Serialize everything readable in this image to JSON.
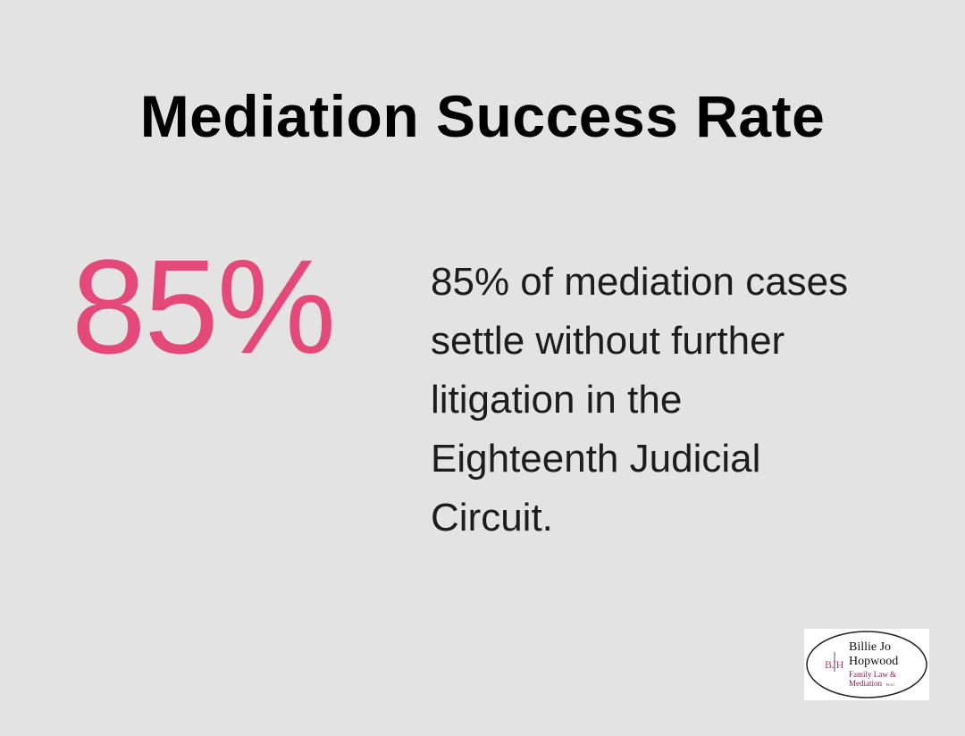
{
  "title": "Mediation Success Rate",
  "stat": "85%",
  "description_lines": [
    "85% of mediation cases",
    "settle without further",
    "litigation in the",
    "Eighteenth Judicial",
    "Circuit."
  ],
  "logo": {
    "initials": "BJH",
    "name_line_1": "Billie Jo",
    "name_line_2": "Hopwood",
    "tagline_line_1": "Family Law &",
    "tagline_line_2": "Mediation",
    "suffix": "PLLC"
  }
}
